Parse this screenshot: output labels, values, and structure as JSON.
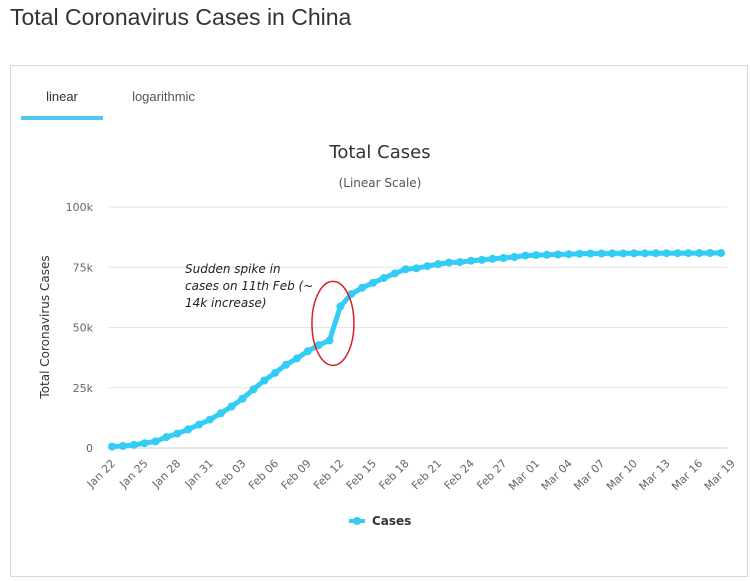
{
  "page": {
    "title": "Total Coronavirus Cases in China"
  },
  "tabs": [
    {
      "label": "linear",
      "active": true
    },
    {
      "label": "logarithmic",
      "active": false
    }
  ],
  "colors": {
    "series": "#33ccf5",
    "annotation_ring": "#d91e25",
    "tab_underline": "#4fc7ee"
  },
  "chart_data": {
    "type": "line",
    "title": "Total Cases",
    "subtitle": "(Linear Scale)",
    "ylabel": "Total Coronavirus Cases",
    "xlabel": "",
    "ylim": [
      0,
      100000
    ],
    "yticks": [
      0,
      25000,
      50000,
      75000,
      100000
    ],
    "ytick_labels": [
      "0",
      "25k",
      "50k",
      "75k",
      "100k"
    ],
    "x_start": "Jan 22",
    "xtick_labels": [
      "Jan 22",
      "Jan 25",
      "Jan 28",
      "Jan 31",
      "Feb 03",
      "Feb 06",
      "Feb 09",
      "Feb 12",
      "Feb 15",
      "Feb 18",
      "Feb 21",
      "Feb 24",
      "Feb 27",
      "Mar 01",
      "Mar 04",
      "Mar 07",
      "Mar 10",
      "Mar 13",
      "Mar 16",
      "Mar 19"
    ],
    "grid": true,
    "legend": {
      "position": "bottom-center"
    },
    "annotation": {
      "text_lines": [
        "Sudden spike in",
        "cases on 11th Feb (~",
        "14k increase)"
      ]
    },
    "series": [
      {
        "name": "Cases",
        "values": [
          571,
          830,
          1287,
          1975,
          2744,
          4515,
          5974,
          7711,
          9692,
          11791,
          14380,
          17205,
          20440,
          24324,
          28018,
          31161,
          34546,
          37198,
          40171,
          42638,
          44653,
          58761,
          63851,
          66492,
          68500,
          70548,
          72436,
          74185,
          74576,
          75465,
          76288,
          76936,
          77150,
          77658,
          78064,
          78497,
          78824,
          79251,
          79824,
          80026,
          80151,
          80271,
          80422,
          80573,
          80652,
          80699,
          80735,
          80754,
          80778,
          80793,
          80813,
          80824,
          80844,
          80860,
          80881,
          80894,
          80928
        ]
      }
    ]
  }
}
